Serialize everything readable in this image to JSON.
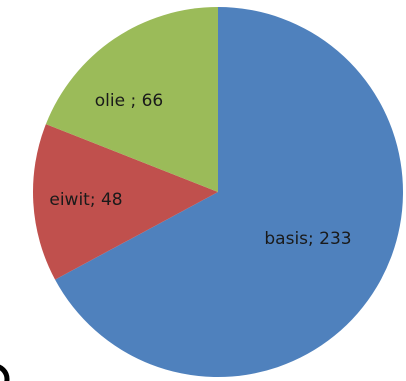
{
  "chart_data": {
    "type": "pie",
    "categories": [
      "basis",
      "eiwit",
      "olie"
    ],
    "values": [
      233,
      48,
      66
    ],
    "labels": [
      "basis; 233",
      "eiwit; 48",
      "olie ; 66"
    ],
    "colors": [
      "#4f81bd",
      "#c0504d",
      "#9bbb59"
    ],
    "start": "top, clockwise"
  }
}
